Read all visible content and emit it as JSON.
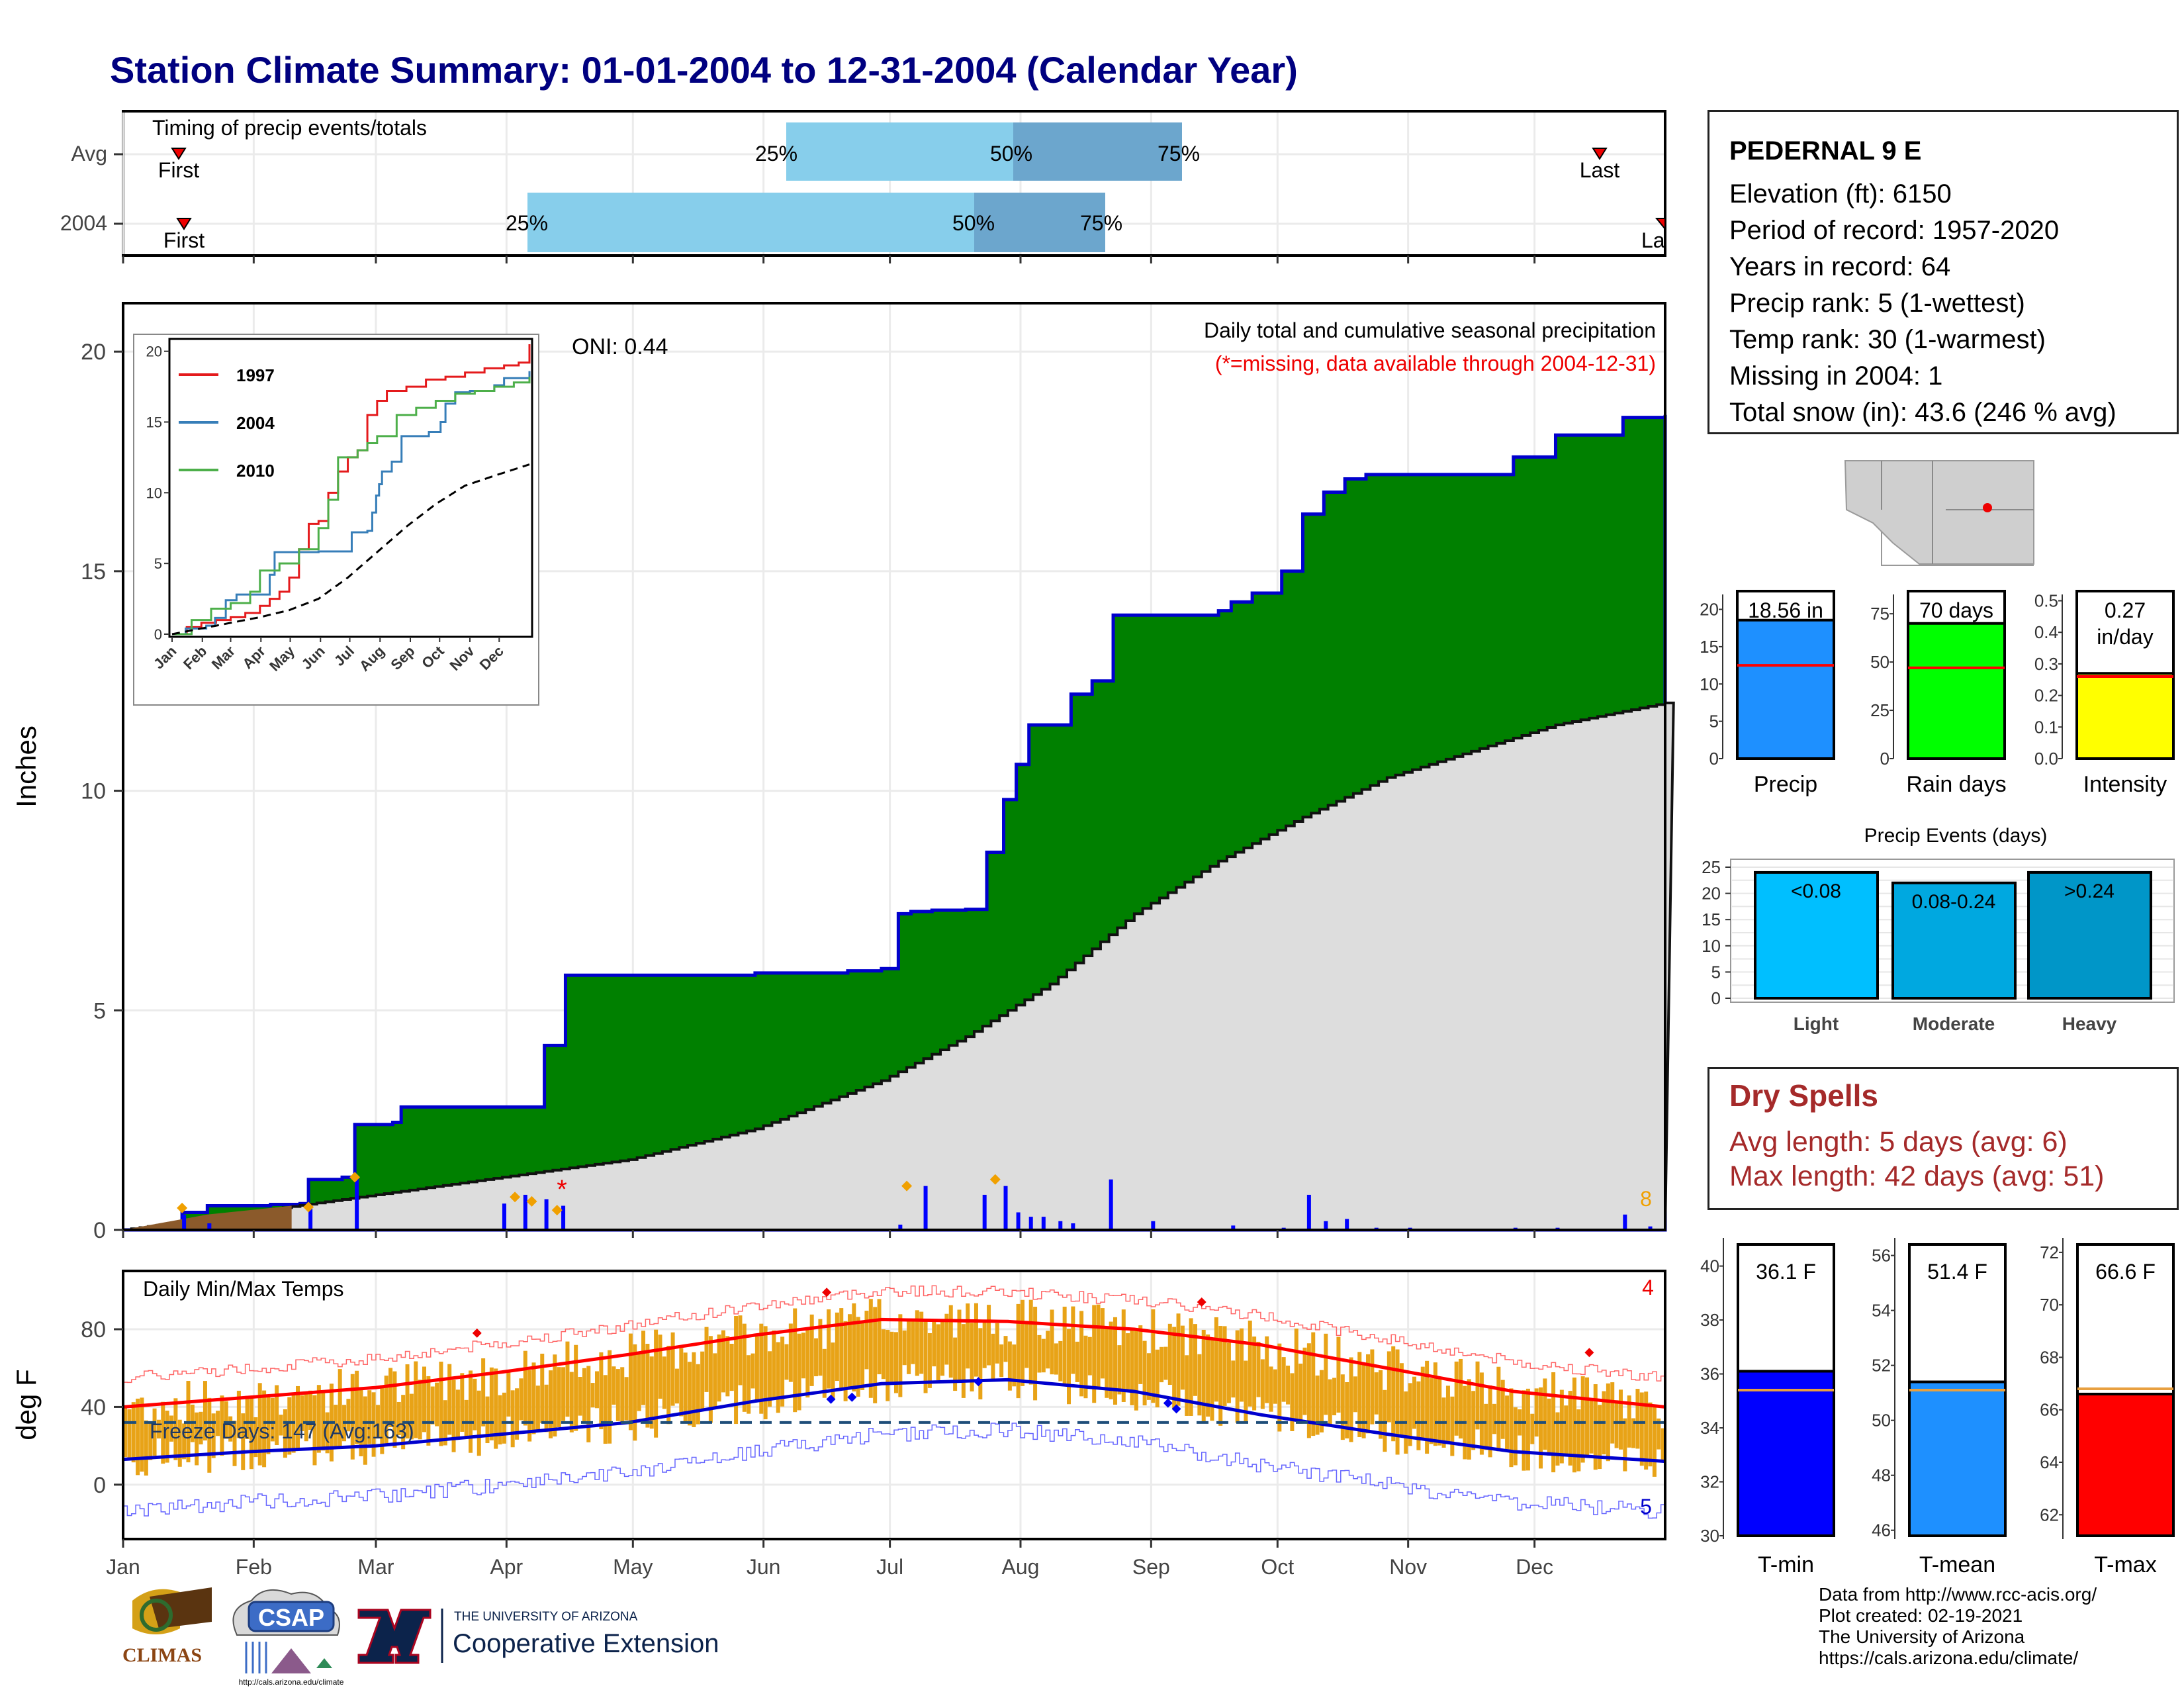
{
  "title": "Station Climate Summary: 01-01-2004 to 12-31-2004 (Calendar Year)",
  "colors": {
    "title": "#000080",
    "green": "#008000",
    "blue_line": "#0000cd",
    "gray_area": "#dddddd",
    "light_blue": "#87ceeb",
    "mid_blue": "#6ca6cd",
    "precip_bar": "#1e90ff",
    "raindays_bar": "#00ff00",
    "intensity_bar": "#ffff00",
    "avg_line": "#ff0000",
    "tmin": "#0000ff",
    "tmean": "#1e90ff",
    "tmax": "#ff0000",
    "temp_bar": "#e8a317",
    "dry_text": "#a52a2a"
  },
  "timing": {
    "title": "Timing of precip events/totals",
    "rows": [
      {
        "label": "Avg",
        "p25": "25%",
        "p50": "50%",
        "p75": "75%",
        "first": "First",
        "last": "Last"
      },
      {
        "label": "2004",
        "p25": "25%",
        "p50": "50%",
        "p75": "75%",
        "first": "First",
        "last": "La"
      }
    ]
  },
  "station": {
    "name": "PEDERNAL 9 E",
    "lines": [
      "Elevation (ft): 6150",
      "Period of record: 1957-2020",
      "Years in record: 64",
      "Precip rank: 5 (1-wettest)",
      "Temp rank: 30 (1-warmest)",
      "Missing in 2004: 1",
      "Total snow (in): 43.6 (246 % avg)"
    ]
  },
  "main_chart": {
    "ylabel": "Inches",
    "note1": "Daily total and cumulative seasonal precipitation",
    "note2": "(*=missing, data available through 2004-12-31)",
    "oni": "ONI: 0.44",
    "yticks": [
      "0",
      "5",
      "10",
      "15",
      "20"
    ],
    "count_label": "8",
    "missing_marker": "*"
  },
  "inset": {
    "legend": [
      "1997",
      "2004",
      "2010"
    ],
    "yticks": [
      "0",
      "5",
      "10",
      "15",
      "20"
    ],
    "months": [
      "Jan",
      "Feb",
      "Mar",
      "Apr",
      "May",
      "Jun",
      "Jul",
      "Aug",
      "Sep",
      "Oct",
      "Nov",
      "Dec"
    ]
  },
  "months": [
    "Jan",
    "Feb",
    "Mar",
    "Apr",
    "May",
    "Jun",
    "Jul",
    "Aug",
    "Sep",
    "Oct",
    "Nov",
    "Dec"
  ],
  "temp_chart": {
    "title": "Daily Min/Max Temps",
    "ylabel": "deg F",
    "yticks": [
      "0",
      "40",
      "80"
    ],
    "freeze": "Freeze Days: 147 (Avg:163)",
    "hot_count": "4",
    "cold_count": "5"
  },
  "summary_bars": {
    "precip": {
      "label": "Precip",
      "value_label": "18.56 in",
      "yticks": [
        "0",
        "5",
        "10",
        "15",
        "20"
      ]
    },
    "raindays": {
      "label": "Rain days",
      "value_label": "70 days",
      "yticks": [
        "0",
        "25",
        "50",
        "75"
      ]
    },
    "intensity": {
      "label": "Intensity",
      "value_label1": "0.27",
      "value_label2": "in/day",
      "yticks": [
        "0.0",
        "0.1",
        "0.2",
        "0.3",
        "0.4",
        "0.5"
      ]
    }
  },
  "events": {
    "title": "Precip Events (days)",
    "yticks": [
      "0",
      "5",
      "10",
      "15",
      "20",
      "25"
    ],
    "labels": [
      "Light",
      "Moderate",
      "Heavy"
    ],
    "bar_labels": [
      "<0.08",
      "0.08-0.24",
      ">0.24"
    ]
  },
  "dry_spells": {
    "title": "Dry Spells",
    "avg": "Avg length: 5 days (avg: 6)",
    "max": "Max length: 42 days (avg: 51)"
  },
  "temp_bars": {
    "tmin": {
      "label": "T-min",
      "value_label": "36.1 F",
      "yticks": [
        "30",
        "32",
        "34",
        "36",
        "38",
        "40"
      ]
    },
    "tmean": {
      "label": "T-mean",
      "value_label": "51.4 F",
      "yticks": [
        "46",
        "48",
        "50",
        "52",
        "54",
        "56"
      ]
    },
    "tmax": {
      "label": "T-max",
      "value_label": "66.6 F",
      "yticks": [
        "62",
        "64",
        "66",
        "68",
        "70",
        "72"
      ]
    }
  },
  "logos": {
    "climas": "CLIMAS",
    "csap": "CSAP",
    "csap_url": "http://cals.arizona.edu/climate",
    "ua_small": "THE UNIVERSITY OF ARIZONA",
    "ua_big": "Cooperative Extension"
  },
  "footer": [
    "Data from http://www.rcc-acis.org/",
    "Plot created: 02-19-2021",
    "The University of Arizona",
    "https://cals.arizona.edu/climate/"
  ],
  "chart_data": [
    {
      "type": "area",
      "title": "Daily total and cumulative seasonal precipitation",
      "ylabel": "Inches",
      "ylim": [
        0,
        20
      ],
      "x_unit": "day of year",
      "series": [
        {
          "name": "2004",
          "x": [
            0,
            14,
            20,
            35,
            42,
            44,
            52,
            55,
            64,
            66,
            73,
            76,
            80,
            90,
            95,
            100,
            105,
            115,
            120,
            140,
            150,
            160,
            170,
            172,
            180,
            184,
            187,
            192,
            200,
            205,
            209,
            212,
            215,
            225,
            230,
            235,
            250,
            255,
            260,
            263,
            268,
            275,
            280,
            285,
            290,
            295,
            300,
            305,
            330,
            340,
            356,
            366
          ],
          "y": [
            0,
            0.4,
            0.55,
            0.58,
            0.6,
            1.15,
            1.2,
            2.4,
            2.45,
            2.8,
            2.8,
            2.8,
            2.8,
            2.8,
            2.8,
            4.2,
            5.8,
            5.8,
            5.8,
            5.8,
            5.85,
            5.85,
            5.85,
            5.9,
            5.95,
            7.2,
            7.25,
            7.28,
            7.3,
            8.6,
            9.8,
            10.6,
            11.5,
            12.2,
            12.5,
            14.0,
            14.0,
            14.0,
            14.1,
            14.3,
            14.5,
            15.0,
            16.3,
            16.8,
            17.1,
            17.2,
            17.2,
            17.2,
            17.6,
            18.1,
            18.5,
            18.56
          ]
        },
        {
          "x": [
            0,
            30,
            60,
            90,
            120,
            150,
            180,
            200,
            220,
            240,
            260,
            280,
            300,
            320,
            340,
            366
          ],
          "y": [
            0,
            0.4,
            0.8,
            1.2,
            1.6,
            2.3,
            3.4,
            4.4,
            5.6,
            7.2,
            8.4,
            9.4,
            10.3,
            10.9,
            11.5,
            12.0
          ]
        }
      ]
    },
    {
      "type": "line",
      "ylim": [
        0,
        20
      ],
      "series": [
        {
          "name": "1997",
          "x": [
            0,
            15,
            30,
            45,
            60,
            75,
            90,
            100,
            110,
            120,
            130,
            140,
            150,
            160,
            170,
            180,
            190,
            200,
            210,
            220,
            240,
            260,
            280,
            300,
            320,
            340,
            355,
            366
          ],
          "y": [
            0,
            0.5,
            0.8,
            1.0,
            1.2,
            1.5,
            2.0,
            2.5,
            3.0,
            4.0,
            6.0,
            7.8,
            8.0,
            10.0,
            11.5,
            12.5,
            13.0,
            15.5,
            16.5,
            17.2,
            17.5,
            18.0,
            18.2,
            18.5,
            18.8,
            19.0,
            19.2,
            20.5
          ]
        },
        {
          "name": "2004",
          "x": [
            0,
            14,
            35,
            44,
            55,
            66,
            80,
            100,
            105,
            150,
            184,
            200,
            205,
            209,
            212,
            215,
            225,
            235,
            263,
            275,
            280,
            290,
            305,
            330,
            340,
            366
          ],
          "y": [
            0,
            0.4,
            0.6,
            1.15,
            2.4,
            2.8,
            2.8,
            4.2,
            5.8,
            5.85,
            7.2,
            7.3,
            8.6,
            9.8,
            10.6,
            11.5,
            12.2,
            14.0,
            14.3,
            15.0,
            16.3,
            17.1,
            17.2,
            17.6,
            18.1,
            18.6
          ]
        },
        {
          "name": "2010",
          "x": [
            0,
            20,
            40,
            60,
            80,
            90,
            110,
            130,
            150,
            160,
            170,
            190,
            200,
            210,
            230,
            250,
            270,
            290,
            310,
            330,
            350,
            366
          ],
          "y": [
            0,
            1.0,
            1.8,
            2.2,
            3.0,
            4.5,
            5.0,
            6.0,
            7.5,
            9.5,
            12.5,
            13.0,
            13.5,
            14.0,
            15.5,
            16.0,
            16.5,
            17.0,
            17.2,
            17.5,
            17.8,
            18.2
          ]
        },
        {
          "x": [
            0,
            30,
            60,
            90,
            120,
            150,
            180,
            210,
            240,
            270,
            300,
            330,
            366
          ],
          "y": [
            0,
            0.4,
            0.8,
            1.2,
            1.7,
            2.5,
            4.0,
            5.8,
            7.6,
            9.2,
            10.5,
            11.2,
            12.0
          ]
        }
      ]
    },
    {
      "type": "line",
      "title": "Daily Min/Max Temps",
      "ylabel": "deg F",
      "ylim": [
        -28,
        110
      ],
      "series": [
        {
          "x": [
            0,
            30,
            60,
            90,
            120,
            150,
            180,
            210,
            240,
            270,
            300,
            330,
            366
          ],
          "y": [
            40,
            45,
            50,
            58,
            67,
            77,
            85,
            84,
            80,
            72,
            60,
            48,
            40
          ]
        },
        {
          "x": [
            0,
            30,
            60,
            90,
            120,
            150,
            180,
            210,
            240,
            270,
            300,
            330,
            366
          ],
          "y": [
            13,
            17,
            20,
            26,
            32,
            43,
            52,
            54,
            48,
            36,
            26,
            17,
            12
          ]
        }
      ],
      "freeze_line": 32
    },
    {
      "type": "bar",
      "categories": [
        "Precip"
      ],
      "values": [
        18.56
      ],
      "avg": 12.5,
      "ylim": [
        0,
        22
      ]
    },
    {
      "type": "bar",
      "categories": [
        "Rain days"
      ],
      "values": [
        70
      ],
      "avg": 47,
      "ylim": [
        0,
        85
      ]
    },
    {
      "type": "bar",
      "categories": [
        "Intensity"
      ],
      "values": [
        0.27
      ],
      "avg": 0.26,
      "ylim": [
        0,
        0.52
      ]
    },
    {
      "type": "bar",
      "title": "Precip Events (days)",
      "categories": [
        "Light",
        "Moderate",
        "Heavy"
      ],
      "values": [
        24,
        22,
        24
      ],
      "ylim": [
        0,
        25
      ]
    },
    {
      "type": "bar",
      "categories": [
        "T-min"
      ],
      "values": [
        36.1
      ],
      "avg": 35.4,
      "ylim": [
        30,
        40.8
      ]
    },
    {
      "type": "bar",
      "categories": [
        "T-mean"
      ],
      "values": [
        51.4
      ],
      "avg": 51.1,
      "ylim": [
        45.8,
        56.4
      ]
    },
    {
      "type": "bar",
      "categories": [
        "T-max"
      ],
      "values": [
        66.6
      ],
      "avg": 66.8,
      "ylim": [
        61.2,
        72.3
      ]
    }
  ]
}
